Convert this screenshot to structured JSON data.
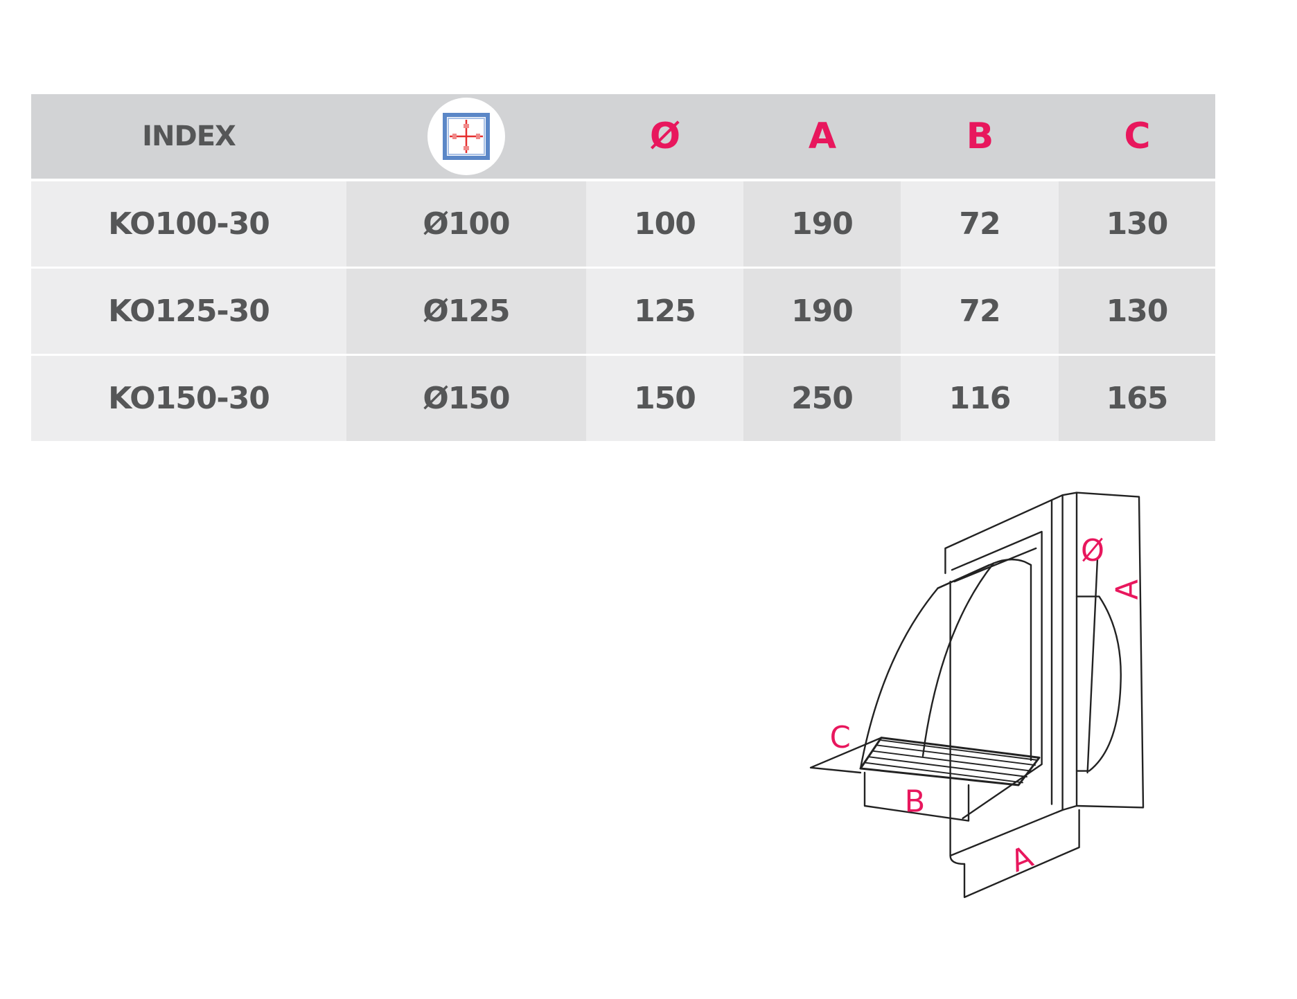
{
  "table": {
    "headers": [
      "INDEX",
      "",
      "Ø",
      "A",
      "B",
      "C"
    ],
    "header_icon": "duct-cross-section-icon",
    "rows": [
      [
        "KO100-30",
        "Ø100",
        "100",
        "190",
        "72",
        "130"
      ],
      [
        "KO125-30",
        "Ø125",
        "125",
        "190",
        "72",
        "130"
      ],
      [
        "KO150-30",
        "Ø150",
        "150",
        "250",
        "116",
        "165"
      ]
    ]
  },
  "drawing": {
    "labels": {
      "diameter": "Ø",
      "a_side": "A",
      "a_bottom": "A",
      "b": "B",
      "c": "C"
    }
  },
  "colors": {
    "accent": "#e8175d",
    "text": "#555657",
    "header_bg": "#d2d3d5"
  }
}
